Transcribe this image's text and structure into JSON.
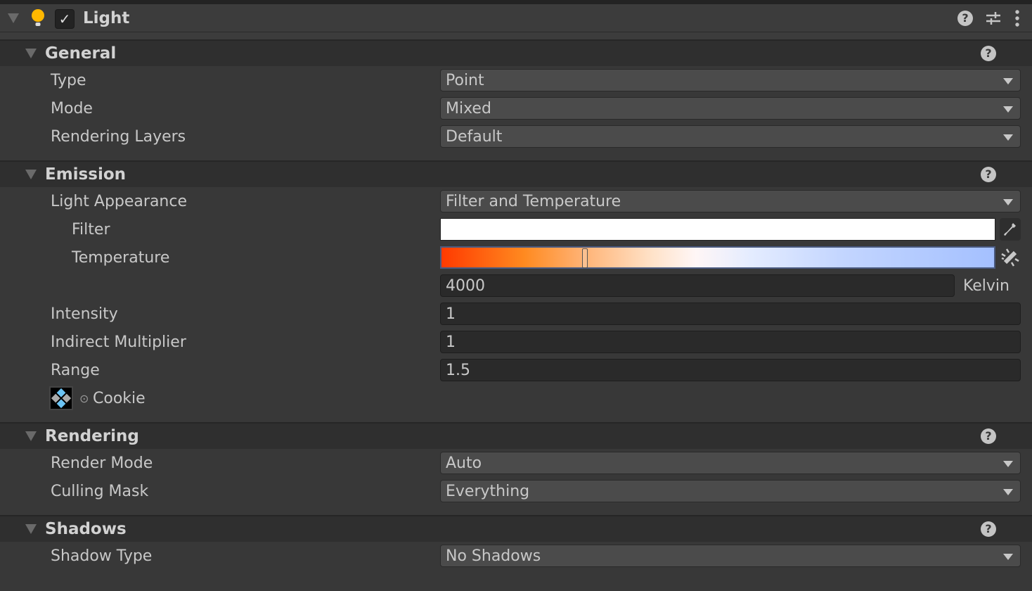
{
  "component": {
    "title": "Light",
    "enabled": true,
    "icons": [
      "light-bulb-icon",
      "help-icon",
      "presets-icon",
      "more-icon"
    ]
  },
  "sections": [
    {
      "title": "General",
      "rows": [
        {
          "label": "Type",
          "value": "Point"
        },
        {
          "label": "Mode",
          "value": "Mixed"
        },
        {
          "label": "Rendering Layers",
          "value": "Default"
        }
      ]
    },
    {
      "title": "Emission",
      "light_appearance": {
        "label": "Light Appearance",
        "value": "Filter and Temperature"
      },
      "filter": {
        "label": "Filter",
        "color": "#ffffff"
      },
      "temperature": {
        "label": "Temperature",
        "value": "4000",
        "unit": "Kelvin"
      },
      "intensity": {
        "label": "Intensity",
        "value": "1"
      },
      "indirect": {
        "label": "Indirect Multiplier",
        "value": "1"
      },
      "range": {
        "label": "Range",
        "value": "1.5"
      },
      "cookie": {
        "label": "Cookie"
      }
    },
    {
      "title": "Rendering",
      "rows": [
        {
          "label": "Render Mode",
          "value": "Auto"
        },
        {
          "label": "Culling Mask",
          "value": "Everything"
        }
      ]
    },
    {
      "title": "Shadows",
      "rows": [
        {
          "label": "Shadow Type",
          "value": "No Shadows"
        }
      ]
    }
  ],
  "colors": {
    "accent_bulb": "#ffb800",
    "background": "#383838"
  }
}
